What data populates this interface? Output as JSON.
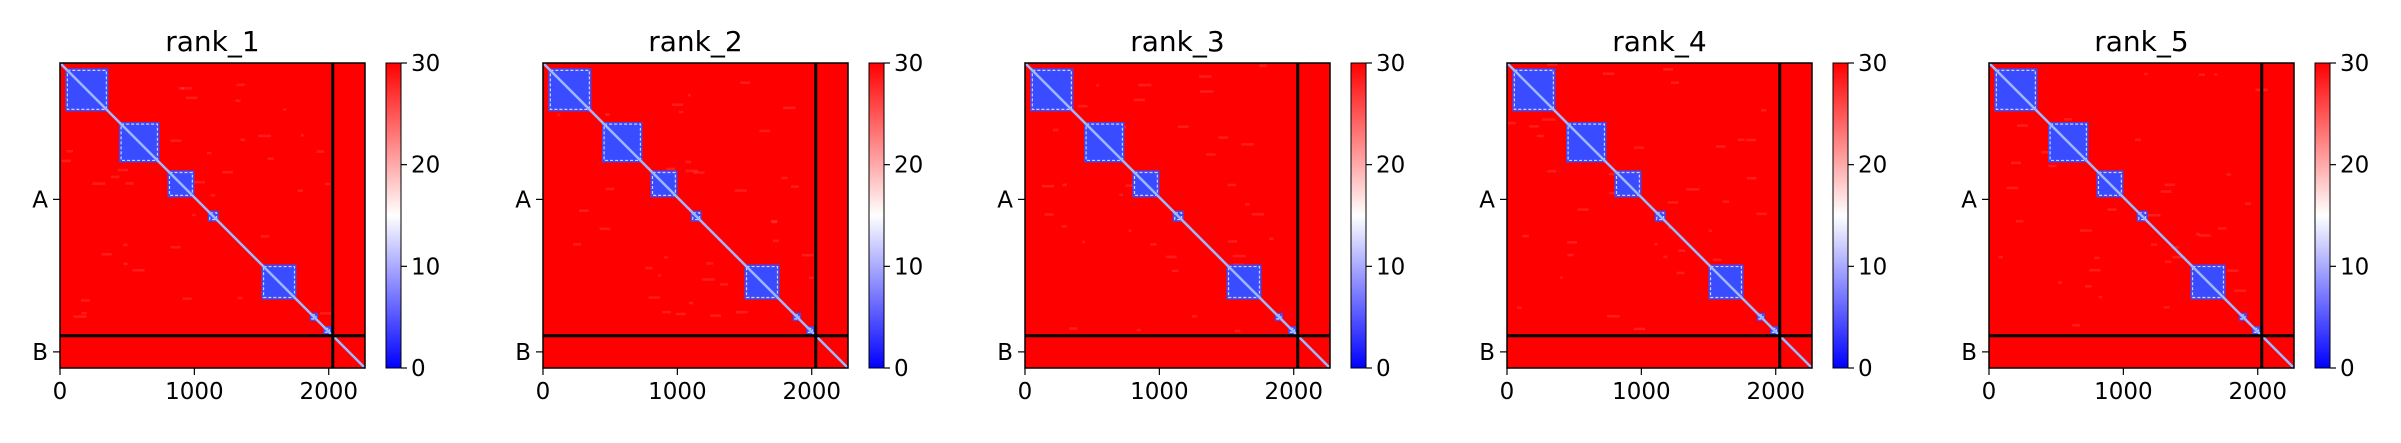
{
  "colors": {
    "high": "#ff0000",
    "mid": "#ffffff",
    "low": "#0000ff",
    "diagonal": "#9fb8ff",
    "chain_line": "#000000"
  },
  "chart_data": [
    {
      "type": "heatmap",
      "title": "rank_1",
      "x_ticks": [
        0,
        1000,
        2000
      ],
      "y_tick_labels": [
        "A",
        "B"
      ],
      "xlim": [
        0,
        2270
      ],
      "n_residues": 2270,
      "chain_boundary": 2030,
      "colorbar": {
        "vmin": 0,
        "vmax": 30,
        "ticks": [
          0,
          10,
          20,
          30
        ],
        "cmap": "bwr"
      },
      "domains": [
        [
          40,
          360
        ],
        [
          440,
          740
        ],
        [
          800,
          1000
        ],
        [
          1100,
          1180
        ],
        [
          1500,
          1760
        ],
        [
          1860,
          1920
        ],
        [
          1960,
          2020
        ]
      ]
    },
    {
      "type": "heatmap",
      "title": "rank_2",
      "x_ticks": [
        0,
        1000,
        2000
      ],
      "y_tick_labels": [
        "A",
        "B"
      ],
      "xlim": [
        0,
        2270
      ],
      "n_residues": 2270,
      "chain_boundary": 2030,
      "colorbar": {
        "vmin": 0,
        "vmax": 30,
        "ticks": [
          0,
          10,
          20,
          30
        ],
        "cmap": "bwr"
      },
      "domains": [
        [
          40,
          360
        ],
        [
          440,
          740
        ],
        [
          800,
          1000
        ],
        [
          1100,
          1180
        ],
        [
          1500,
          1760
        ],
        [
          1860,
          1920
        ],
        [
          1960,
          2020
        ]
      ]
    },
    {
      "type": "heatmap",
      "title": "rank_3",
      "x_ticks": [
        0,
        1000,
        2000
      ],
      "y_tick_labels": [
        "A",
        "B"
      ],
      "xlim": [
        0,
        2270
      ],
      "n_residues": 2270,
      "chain_boundary": 2030,
      "colorbar": {
        "vmin": 0,
        "vmax": 30,
        "ticks": [
          0,
          10,
          20,
          30
        ],
        "cmap": "bwr"
      },
      "domains": [
        [
          40,
          360
        ],
        [
          440,
          740
        ],
        [
          800,
          1000
        ],
        [
          1100,
          1180
        ],
        [
          1500,
          1760
        ],
        [
          1860,
          1920
        ],
        [
          1960,
          2020
        ]
      ]
    },
    {
      "type": "heatmap",
      "title": "rank_4",
      "x_ticks": [
        0,
        1000,
        2000
      ],
      "y_tick_labels": [
        "A",
        "B"
      ],
      "xlim": [
        0,
        2270
      ],
      "n_residues": 2270,
      "chain_boundary": 2030,
      "colorbar": {
        "vmin": 0,
        "vmax": 30,
        "ticks": [
          0,
          10,
          20,
          30
        ],
        "cmap": "bwr"
      },
      "domains": [
        [
          40,
          360
        ],
        [
          440,
          740
        ],
        [
          800,
          1000
        ],
        [
          1100,
          1180
        ],
        [
          1500,
          1760
        ],
        [
          1860,
          1920
        ],
        [
          1960,
          2020
        ]
      ]
    },
    {
      "type": "heatmap",
      "title": "rank_5",
      "x_ticks": [
        0,
        1000,
        2000
      ],
      "y_tick_labels": [
        "A",
        "B"
      ],
      "xlim": [
        0,
        2270
      ],
      "n_residues": 2270,
      "chain_boundary": 2030,
      "colorbar": {
        "vmin": 0,
        "vmax": 30,
        "ticks": [
          0,
          10,
          20,
          30
        ],
        "cmap": "bwr"
      },
      "domains": [
        [
          40,
          360
        ],
        [
          440,
          740
        ],
        [
          800,
          1000
        ],
        [
          1100,
          1180
        ],
        [
          1500,
          1760
        ],
        [
          1860,
          1920
        ],
        [
          1960,
          2020
        ]
      ]
    }
  ]
}
